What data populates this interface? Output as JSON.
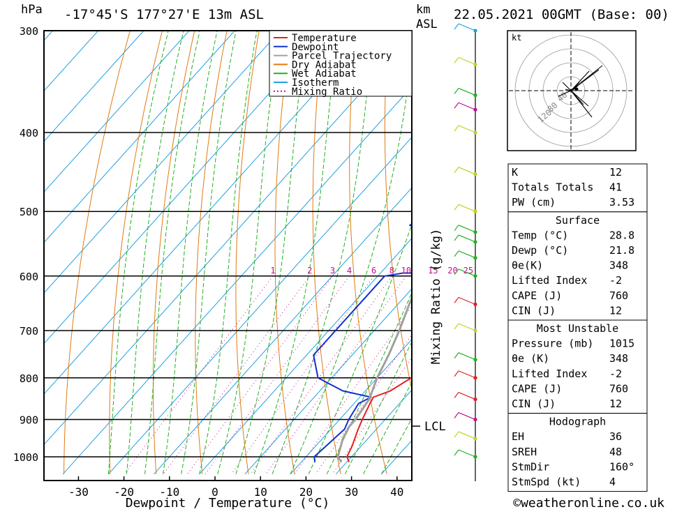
{
  "header": {
    "hpa_label": "hPa",
    "location": "-17°45'S 177°27'E 13m ASL",
    "km_label": "km",
    "asl_label": "ASL",
    "datetime": "22.05.2021 00GMT (Base: 00)"
  },
  "colors": {
    "temperature": "#e02020",
    "dewpoint": "#1030d0",
    "parcel": "#a0a0a0",
    "dry_adiabat": "#e07a10",
    "wet_adiabat": "#20b020",
    "isotherm": "#20a0e0",
    "mixing_ratio": "#c0108a"
  },
  "legend": [
    {
      "label": "Temperature",
      "color": "#e02020",
      "dotted": false
    },
    {
      "label": "Dewpoint",
      "color": "#1030d0",
      "dotted": false
    },
    {
      "label": "Parcel Trajectory",
      "color": "#a0a0a0",
      "dotted": false
    },
    {
      "label": "Dry Adiabat",
      "color": "#e07a10",
      "dotted": false
    },
    {
      "label": "Wet Adiabat",
      "color": "#20b020",
      "dotted": false
    },
    {
      "label": "Isotherm",
      "color": "#20a0e0",
      "dotted": false
    },
    {
      "label": "Mixing Ratio",
      "color": "#c0108a",
      "dotted": true
    }
  ],
  "chart_data": {
    "type": "line",
    "xlabel": "Dewpoint / Temperature (°C)",
    "ylabel": "hPa",
    "xlim": [
      -38,
      43
    ],
    "x_ticks": [
      -30,
      -20,
      -10,
      0,
      10,
      20,
      30,
      40
    ],
    "pressure_ticks": [
      300,
      400,
      500,
      600,
      700,
      800,
      900,
      1000
    ],
    "pressure_range": [
      1050,
      300
    ],
    "lcl_label": "LCL",
    "lcl_pressure": 917,
    "mixing_ratio_label": "Mixing Ratio (g/kg)",
    "mixing_ratio_values": [
      "1",
      "2",
      "3",
      "4",
      "6",
      "8",
      "10",
      "15",
      "20",
      "25"
    ],
    "series": [
      {
        "name": "Temperature",
        "points": [
          [
            1015,
            30.5
          ],
          [
            1000,
            29.0
          ],
          [
            970,
            28.0
          ],
          [
            925,
            26.0
          ],
          [
            900,
            25.0
          ],
          [
            860,
            23.5
          ],
          [
            845,
            23.0
          ],
          [
            830,
            25.5
          ],
          [
            800,
            27.5
          ],
          [
            750,
            26.0
          ],
          [
            700,
            23.5
          ],
          [
            650,
            21.0
          ],
          [
            600,
            18.0
          ],
          [
            550,
            14.5
          ],
          [
            530,
            14.0
          ],
          [
            500,
            14.0
          ],
          [
            470,
            12.0
          ],
          [
            450,
            10.5
          ],
          [
            400,
            9.5
          ],
          [
            350,
            7.5
          ],
          [
            300,
            3.5
          ]
        ]
      },
      {
        "name": "Dewpoint",
        "points": [
          [
            1015,
            23.0
          ],
          [
            1000,
            21.8
          ],
          [
            925,
            23.0
          ],
          [
            900,
            22.0
          ],
          [
            860,
            21.0
          ],
          [
            845,
            22.5
          ],
          [
            830,
            15.0
          ],
          [
            800,
            7.0
          ],
          [
            750,
            1.5
          ],
          [
            700,
            1.5
          ],
          [
            650,
            1.5
          ],
          [
            600,
            1.5
          ],
          [
            595,
            5.0
          ],
          [
            595,
            15.0
          ],
          [
            580,
            15.0
          ],
          [
            550,
            13.0
          ],
          [
            530,
            9.0
          ],
          [
            520,
            -3.0
          ],
          [
            500,
            -1.0
          ],
          [
            450,
            5.5
          ],
          [
            420,
            -2.0
          ],
          [
            400,
            7.5
          ],
          [
            380,
            -10.0
          ],
          [
            350,
            -12.0
          ],
          [
            300,
            -3.0
          ]
        ]
      },
      {
        "name": "Parcel Trajectory",
        "points": [
          [
            1015,
            28.8
          ],
          [
            1000,
            27.0
          ],
          [
            950,
            24.5
          ],
          [
            917,
            23.5
          ],
          [
            900,
            23.5
          ],
          [
            850,
            22.5
          ],
          [
            800,
            20.0
          ],
          [
            750,
            18.0
          ],
          [
            700,
            15.5
          ],
          [
            650,
            12.5
          ],
          [
            600,
            9.5
          ],
          [
            550,
            6.0
          ],
          [
            500,
            2.5
          ],
          [
            450,
            -2.0
          ],
          [
            400,
            -7.0
          ],
          [
            350,
            -13.0
          ]
        ]
      }
    ]
  },
  "hodograph": {
    "unit": "kt",
    "ring_labels": [
      "40",
      "80",
      "120"
    ],
    "segments": [
      [
        0,
        0,
        6,
        3
      ],
      [
        0,
        0,
        10,
        7
      ],
      [
        0,
        0,
        -12,
        12
      ],
      [
        0,
        0,
        -8,
        2
      ],
      [
        0,
        0,
        25,
        -22
      ],
      [
        0,
        0,
        18,
        -20
      ],
      [
        0,
        0,
        30,
        -38
      ],
      [
        0,
        0,
        -18,
        -8
      ],
      [
        0,
        0,
        12,
        12
      ],
      [
        0,
        0,
        26,
        28
      ],
      [
        0,
        0,
        45,
        36
      ],
      [
        0,
        0,
        40,
        30
      ]
    ]
  },
  "wind_profile": {
    "markers": [
      {
        "p": 300,
        "color": "#20a0e0"
      },
      {
        "p": 330,
        "color": "#c0d020"
      },
      {
        "p": 360,
        "color": "#20b020"
      },
      {
        "p": 375,
        "color": "#c0108a"
      },
      {
        "p": 400,
        "color": "#c0d020"
      },
      {
        "p": 450,
        "color": "#c0d020"
      },
      {
        "p": 500,
        "color": "#c0d020"
      },
      {
        "p": 530,
        "color": "#20b020"
      },
      {
        "p": 545,
        "color": "#20b020"
      },
      {
        "p": 570,
        "color": "#20b020"
      },
      {
        "p": 600,
        "color": "#20b020"
      },
      {
        "p": 650,
        "color": "#e02020"
      },
      {
        "p": 700,
        "color": "#c0d020"
      },
      {
        "p": 760,
        "color": "#20b020"
      },
      {
        "p": 800,
        "color": "#e02020"
      },
      {
        "p": 850,
        "color": "#e02020"
      },
      {
        "p": 900,
        "color": "#c0108a"
      },
      {
        "p": 950,
        "color": "#c0d020"
      },
      {
        "p": 1000,
        "color": "#20b020"
      }
    ]
  },
  "indices": {
    "general": [
      {
        "label": "K",
        "value": "12"
      },
      {
        "label": "Totals Totals",
        "value": "41"
      },
      {
        "label": "PW (cm)",
        "value": "3.53"
      }
    ],
    "surface": {
      "title": "Surface",
      "rows": [
        {
          "label": "Temp (°C)",
          "value": "28.8"
        },
        {
          "label": "Dewp (°C)",
          "value": "21.8"
        },
        {
          "label": "θe(K)",
          "value": "348"
        },
        {
          "label": "Lifted Index",
          "value": "-2"
        },
        {
          "label": "CAPE (J)",
          "value": "760"
        },
        {
          "label": "CIN (J)",
          "value": "12"
        }
      ]
    },
    "most_unstable": {
      "title": "Most Unstable",
      "rows": [
        {
          "label": "Pressure (mb)",
          "value": "1015"
        },
        {
          "label": "θe (K)",
          "value": "348"
        },
        {
          "label": "Lifted Index",
          "value": "-2"
        },
        {
          "label": "CAPE (J)",
          "value": "760"
        },
        {
          "label": "CIN (J)",
          "value": "12"
        }
      ]
    },
    "hodograph": {
      "title": "Hodograph",
      "rows": [
        {
          "label": "EH",
          "value": "36"
        },
        {
          "label": "SREH",
          "value": "48"
        },
        {
          "label": "StmDir",
          "value": "160°"
        },
        {
          "label": "StmSpd (kt)",
          "value": "4"
        }
      ]
    }
  },
  "footer": {
    "copyright": "©weatheronline.co.uk"
  }
}
